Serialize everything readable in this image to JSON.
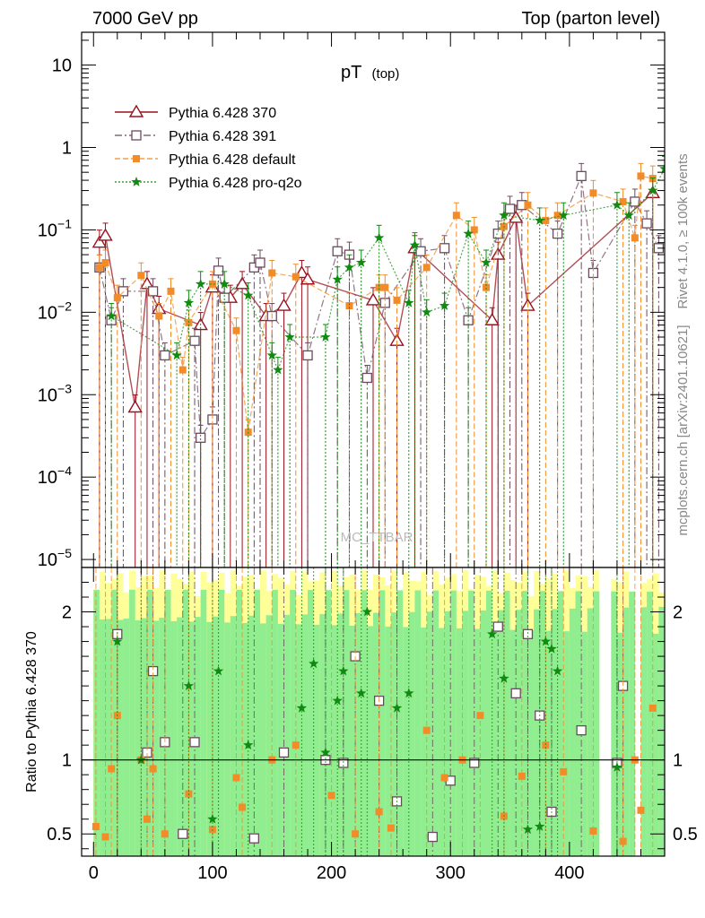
{
  "header": {
    "left": "7000 GeV pp",
    "right": "Top (parton level)"
  },
  "side_labels": {
    "rivet": "Rivet 4.1.0, ≥ 100k events",
    "mcplots": "mcplots.cern.ch [arXiv:2401.10621]"
  },
  "watermark": "MC_TTBAR",
  "colors": {
    "pythia_370": "#9b111e",
    "pythia_391": "#6b4a5e",
    "pythia_default": "#f28c28",
    "pythia_proq2o": "#118a11",
    "band_green": "#90ee90",
    "band_yellow": "#ffff99"
  },
  "chart_data": [
    {
      "type": "line",
      "title": "pT",
      "title_sub": "(top)",
      "xlabel": "",
      "ylabel": "",
      "yscale": "log",
      "xlim": [
        -10,
        480
      ],
      "ylim": [
        8e-06,
        25
      ],
      "ytick_labels": [
        {
          "value": 10,
          "base": "10",
          "exp": ""
        },
        {
          "value": 1,
          "base": "1",
          "exp": ""
        },
        {
          "value": 0.1,
          "base": "10",
          "exp": "−1"
        },
        {
          "value": 0.01,
          "base": "10",
          "exp": "−2"
        },
        {
          "value": 0.001,
          "base": "10",
          "exp": "−3"
        },
        {
          "value": 0.0001,
          "base": "10",
          "exp": "−4"
        },
        {
          "value": 1e-05,
          "base": "10",
          "exp": "−5"
        }
      ],
      "legend": [
        "Pythia 6.428 370",
        "Pythia 6.428 391",
        "Pythia 6.428 default",
        "Pythia 6.428 pro-q2o"
      ],
      "series": [
        {
          "name": "Pythia 6.428 370",
          "marker": "triangle",
          "x": [
            5,
            10,
            35,
            45,
            55,
            90,
            100,
            115,
            125,
            145,
            160,
            175,
            180,
            235,
            255,
            270,
            335,
            340,
            355,
            365,
            470
          ],
          "y": [
            0.07,
            0.085,
            0.0007,
            0.022,
            0.011,
            0.007,
            0.02,
            0.015,
            0.022,
            0.009,
            0.012,
            0.03,
            0.025,
            0.014,
            0.0045,
            0.06,
            0.008,
            0.05,
            0.14,
            0.012,
            0.28
          ]
        },
        {
          "name": "Pythia 6.428 391",
          "marker": "square",
          "x": [
            5,
            15,
            25,
            50,
            60,
            85,
            90,
            100,
            105,
            110,
            135,
            140,
            150,
            180,
            205,
            215,
            230,
            245,
            275,
            295,
            315,
            340,
            350,
            360,
            390,
            410,
            420,
            455,
            465,
            475
          ],
          "y": [
            0.035,
            0.008,
            0.018,
            0.018,
            0.003,
            0.0045,
            0.0003,
            0.0005,
            0.032,
            0.015,
            0.035,
            0.04,
            0.009,
            0.003,
            0.055,
            0.05,
            0.0016,
            0.013,
            0.055,
            0.06,
            0.008,
            0.09,
            0.18,
            0.2,
            0.09,
            0.45,
            0.03,
            0.22,
            0.12,
            0.06
          ]
        },
        {
          "name": "Pythia 6.428 default",
          "marker": "circle",
          "x": [
            5,
            10,
            20,
            40,
            55,
            65,
            75,
            80,
            100,
            120,
            130,
            150,
            170,
            215,
            240,
            245,
            255,
            280,
            305,
            320,
            330,
            345,
            365,
            380,
            390,
            420,
            445,
            455,
            460,
            470
          ],
          "y": [
            0.035,
            0.04,
            0.015,
            0.028,
            0.009,
            0.018,
            0.002,
            0.0075,
            0.022,
            0.006,
            0.00035,
            0.03,
            0.027,
            0.012,
            0.02,
            0.02,
            0.014,
            0.035,
            0.15,
            0.1,
            0.02,
            0.11,
            0.2,
            0.13,
            0.15,
            0.28,
            0.22,
            0.08,
            0.45,
            0.42
          ]
        },
        {
          "name": "Pythia 6.428 pro-q2o",
          "marker": "star",
          "x": [
            15,
            70,
            80,
            90,
            110,
            130,
            150,
            155,
            165,
            195,
            205,
            215,
            225,
            240,
            265,
            270,
            280,
            295,
            315,
            330,
            345,
            375,
            395,
            440,
            450,
            470,
            480
          ],
          "y": [
            0.009,
            0.003,
            0.013,
            0.022,
            0.022,
            0.016,
            0.003,
            0.002,
            0.005,
            0.005,
            0.025,
            0.035,
            0.04,
            0.08,
            0.013,
            0.065,
            0.01,
            0.012,
            0.09,
            0.04,
            0.15,
            0.13,
            0.15,
            0.2,
            0.15,
            0.3,
            0.55
          ]
        }
      ]
    },
    {
      "type": "line",
      "title": "",
      "xlabel": "",
      "ylabel": "Ratio to Pythia 6.428 370",
      "xlim": [
        -10,
        480
      ],
      "ylim": [
        0.35,
        2.3
      ],
      "xticks": [
        0,
        100,
        200,
        300,
        400
      ],
      "xtick_labels": [
        "0",
        "100",
        "200",
        "300",
        "400"
      ],
      "yticks": [
        0.5,
        1,
        2
      ],
      "ytick_labels": [
        "0.5",
        "1",
        "2"
      ],
      "reference_line": 1,
      "series": [
        {
          "name": "Pythia 6.428 391",
          "marker": "square",
          "x": [
            20,
            45,
            50,
            60,
            75,
            85,
            135,
            160,
            195,
            210,
            220,
            240,
            255,
            285,
            300,
            320,
            340,
            355,
            365,
            375,
            385,
            410,
            440,
            445
          ],
          "y": [
            1.85,
            1.05,
            1.6,
            1.12,
            0.5,
            1.12,
            0.47,
            1.05,
            1.0,
            0.98,
            1.7,
            1.4,
            0.72,
            0.48,
            0.86,
            0.98,
            1.9,
            1.45,
            1.85,
            1.3,
            0.65,
            1.2,
            0.98,
            1.5
          ]
        },
        {
          "name": "Pythia 6.428 default",
          "marker": "circle",
          "x": [
            2,
            10,
            15,
            20,
            40,
            45,
            50,
            60,
            80,
            100,
            120,
            125,
            150,
            170,
            200,
            220,
            240,
            250,
            280,
            295,
            310,
            325,
            345,
            360,
            380,
            395,
            420,
            445,
            455,
            460,
            470
          ],
          "y": [
            0.55,
            0.48,
            0.94,
            1.3,
            1.0,
            0.6,
            0.94,
            0.5,
            0.77,
            0.53,
            0.88,
            0.68,
            1.0,
            1.1,
            0.76,
            0.5,
            0.65,
            0.54,
            1.2,
            0.88,
            1.0,
            1.3,
            0.62,
            0.89,
            1.1,
            0.92,
            0.52,
            0.45,
            1.0,
            0.66,
            1.35
          ]
        },
        {
          "name": "Pythia 6.428 pro-q2o",
          "marker": "star",
          "x": [
            20,
            40,
            80,
            100,
            105,
            130,
            175,
            185,
            195,
            205,
            210,
            225,
            230,
            255,
            265,
            335,
            345,
            365,
            375,
            380,
            385,
            390,
            440
          ],
          "y": [
            1.8,
            1.0,
            1.5,
            0.6,
            1.6,
            1.1,
            1.35,
            1.65,
            1.05,
            1.4,
            1.6,
            1.45,
            2.0,
            1.35,
            1.45,
            1.85,
            1.55,
            0.53,
            0.55,
            1.8,
            1.75,
            1.6,
            0.95
          ]
        }
      ]
    }
  ]
}
